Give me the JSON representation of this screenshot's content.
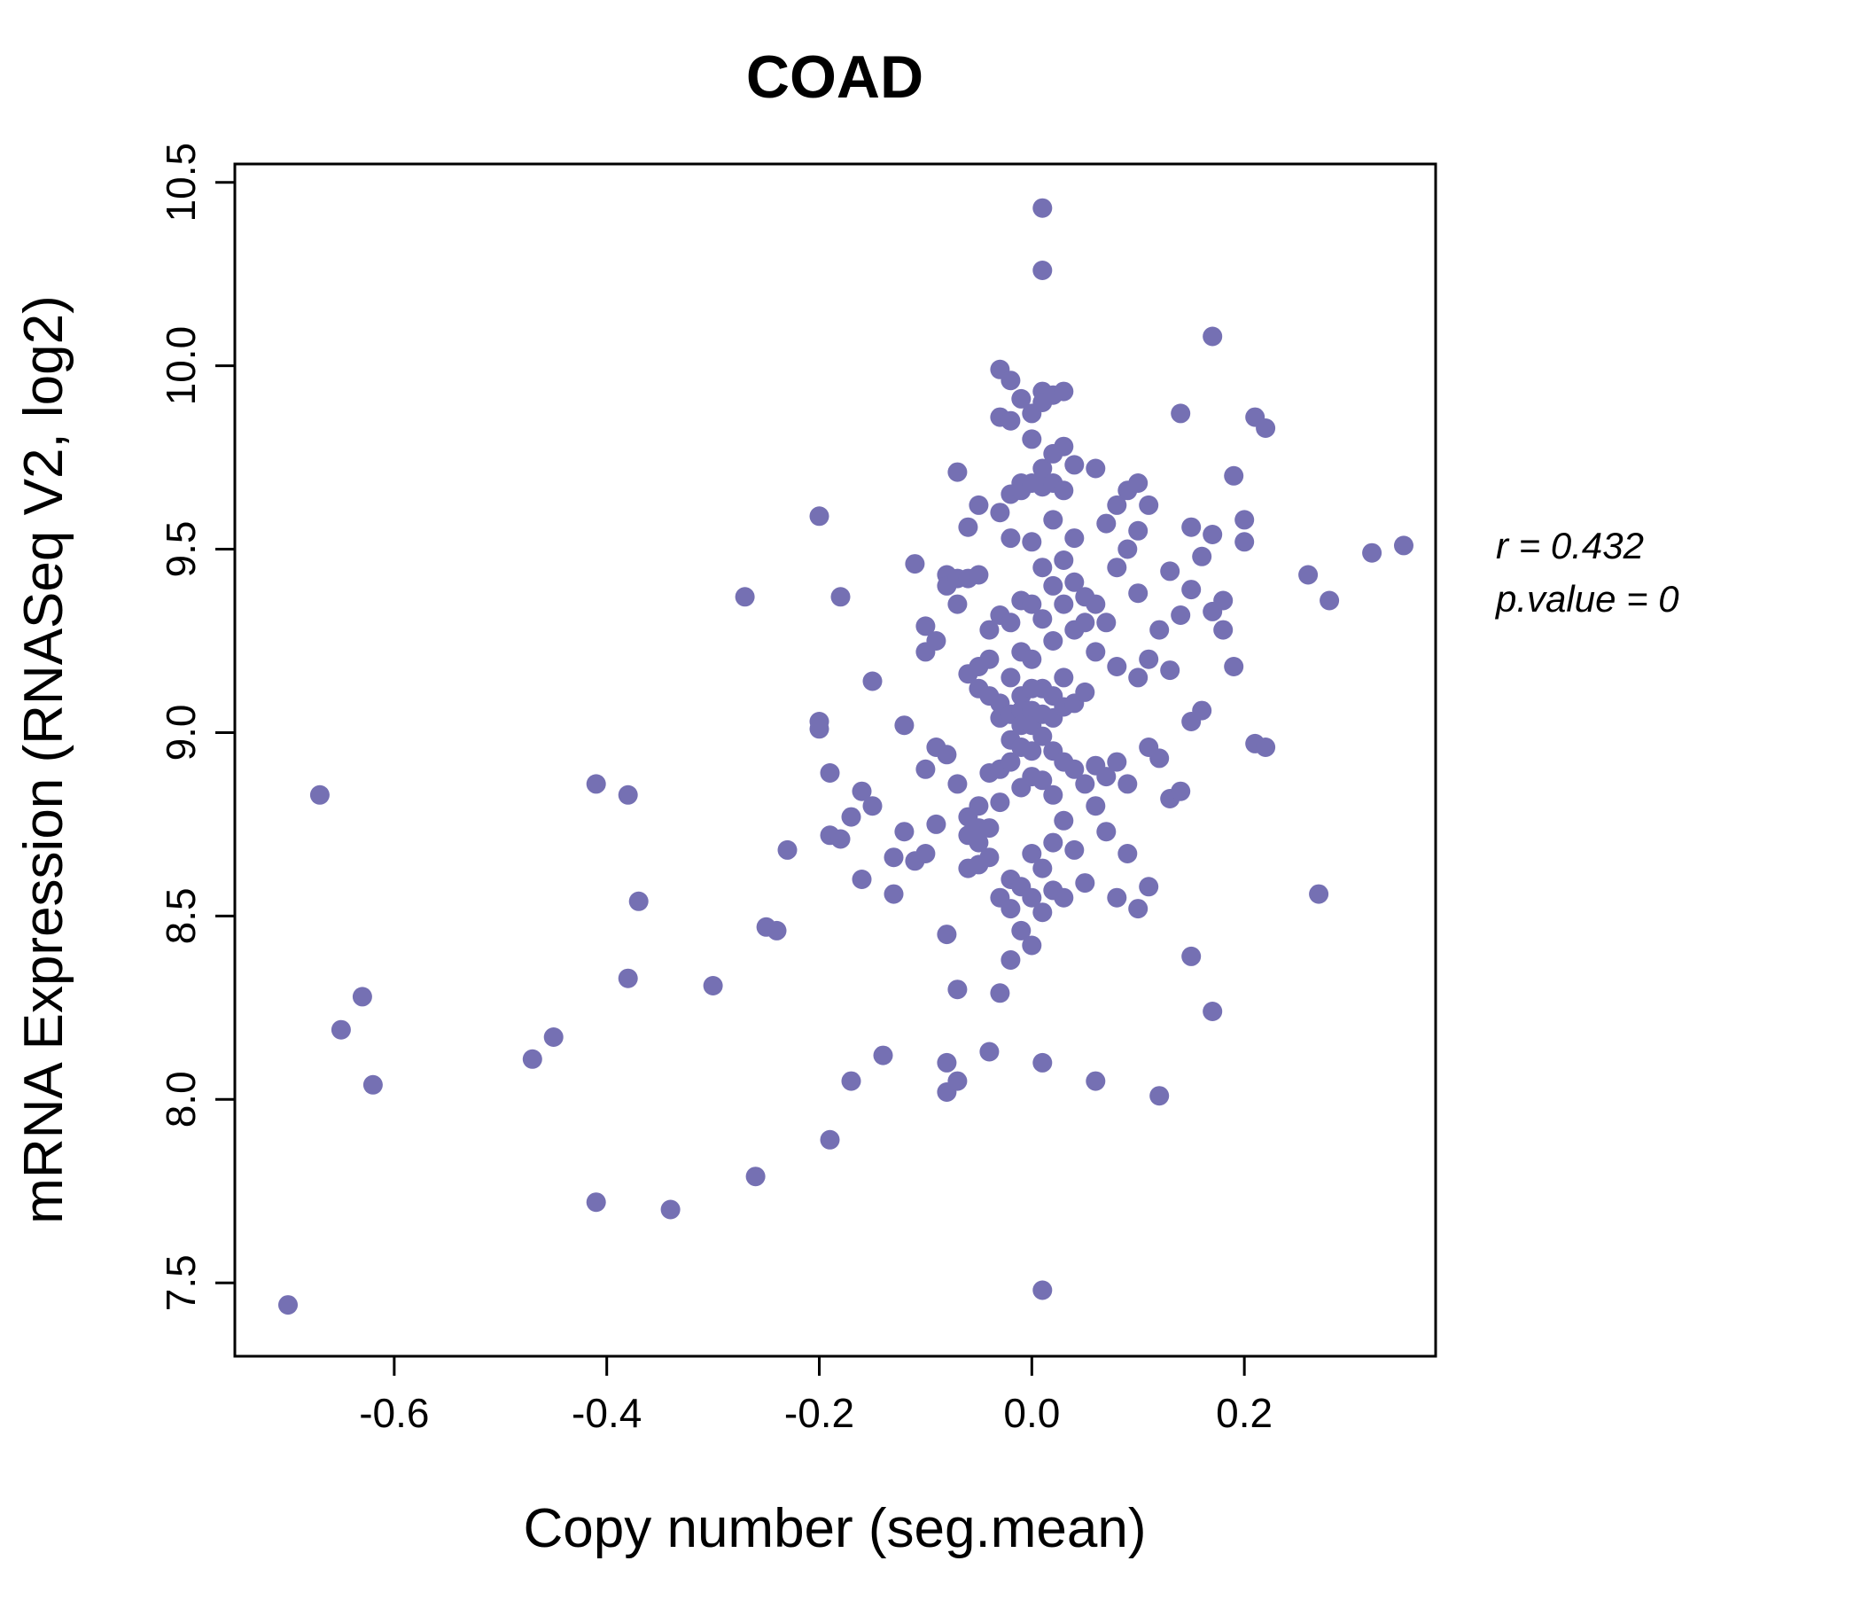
{
  "chart_data": {
    "type": "scatter",
    "title": "COAD",
    "xlabel": "Copy number (seg.mean)",
    "ylabel": "mRNA Expression (RNASeq V2, log2)",
    "xlim": [
      -0.75,
      0.38
    ],
    "ylim": [
      7.3,
      10.55
    ],
    "x_ticks": [
      "-0.6",
      "-0.4",
      "-0.2",
      "0.0",
      "0.2"
    ],
    "y_ticks": [
      "7.5",
      "8.0",
      "8.5",
      "9.0",
      "9.5",
      "10.0",
      "10.5"
    ],
    "annotation_lines": [
      "r = 0.432",
      "p.value = 0"
    ],
    "point_color": "#7570b3",
    "title_color": "#7e7fbc",
    "legend": "none",
    "grid": false,
    "points": [
      [
        -0.7,
        7.44
      ],
      [
        -0.67,
        8.83
      ],
      [
        -0.65,
        8.19
      ],
      [
        -0.63,
        8.28
      ],
      [
        -0.62,
        8.04
      ],
      [
        -0.47,
        8.11
      ],
      [
        -0.45,
        8.17
      ],
      [
        -0.41,
        7.72
      ],
      [
        -0.41,
        8.86
      ],
      [
        -0.38,
        8.83
      ],
      [
        -0.38,
        8.33
      ],
      [
        -0.37,
        8.54
      ],
      [
        -0.34,
        7.7
      ],
      [
        -0.3,
        8.31
      ],
      [
        -0.27,
        9.37
      ],
      [
        -0.26,
        7.79
      ],
      [
        -0.25,
        8.47
      ],
      [
        -0.24,
        8.46
      ],
      [
        -0.23,
        8.68
      ],
      [
        -0.2,
        9.59
      ],
      [
        -0.2,
        9.03
      ],
      [
        -0.2,
        9.01
      ],
      [
        -0.19,
        8.89
      ],
      [
        -0.19,
        8.72
      ],
      [
        -0.19,
        7.89
      ],
      [
        -0.18,
        9.37
      ],
      [
        -0.18,
        8.71
      ],
      [
        -0.17,
        8.05
      ],
      [
        -0.17,
        8.77
      ],
      [
        -0.16,
        8.84
      ],
      [
        -0.16,
        8.6
      ],
      [
        -0.15,
        9.14
      ],
      [
        -0.15,
        8.8
      ],
      [
        -0.14,
        8.12
      ],
      [
        -0.13,
        8.66
      ],
      [
        -0.13,
        8.56
      ],
      [
        -0.12,
        9.02
      ],
      [
        -0.12,
        8.73
      ],
      [
        -0.11,
        9.46
      ],
      [
        -0.11,
        8.65
      ],
      [
        -0.1,
        9.29
      ],
      [
        -0.1,
        9.22
      ],
      [
        -0.1,
        8.9
      ],
      [
        -0.1,
        8.67
      ],
      [
        -0.09,
        9.25
      ],
      [
        -0.09,
        8.96
      ],
      [
        -0.09,
        8.75
      ],
      [
        -0.08,
        9.43
      ],
      [
        -0.08,
        9.4
      ],
      [
        -0.08,
        8.94
      ],
      [
        -0.08,
        8.45
      ],
      [
        -0.08,
        8.1
      ],
      [
        -0.08,
        8.02
      ],
      [
        -0.07,
        9.71
      ],
      [
        -0.07,
        9.42
      ],
      [
        -0.07,
        9.35
      ],
      [
        -0.07,
        8.86
      ],
      [
        -0.07,
        8.3
      ],
      [
        -0.07,
        8.05
      ],
      [
        -0.06,
        9.56
      ],
      [
        -0.06,
        9.42
      ],
      [
        -0.06,
        9.16
      ],
      [
        -0.06,
        8.77
      ],
      [
        -0.06,
        8.72
      ],
      [
        -0.06,
        8.63
      ],
      [
        -0.05,
        9.62
      ],
      [
        -0.05,
        9.43
      ],
      [
        -0.05,
        9.18
      ],
      [
        -0.05,
        9.12
      ],
      [
        -0.05,
        8.8
      ],
      [
        -0.05,
        8.74
      ],
      [
        -0.05,
        8.7
      ],
      [
        -0.05,
        8.64
      ],
      [
        -0.04,
        9.28
      ],
      [
        -0.04,
        9.2
      ],
      [
        -0.04,
        9.1
      ],
      [
        -0.04,
        8.89
      ],
      [
        -0.04,
        8.74
      ],
      [
        -0.04,
        8.66
      ],
      [
        -0.04,
        8.13
      ],
      [
        -0.03,
        9.99
      ],
      [
        -0.03,
        9.86
      ],
      [
        -0.03,
        9.6
      ],
      [
        -0.03,
        9.32
      ],
      [
        -0.03,
        9.08
      ],
      [
        -0.03,
        9.04
      ],
      [
        -0.03,
        8.9
      ],
      [
        -0.03,
        8.81
      ],
      [
        -0.03,
        8.55
      ],
      [
        -0.03,
        8.29
      ],
      [
        -0.02,
        9.96
      ],
      [
        -0.02,
        9.85
      ],
      [
        -0.02,
        9.65
      ],
      [
        -0.02,
        9.53
      ],
      [
        -0.02,
        9.3
      ],
      [
        -0.02,
        9.15
      ],
      [
        -0.02,
        9.05
      ],
      [
        -0.02,
        8.98
      ],
      [
        -0.02,
        8.92
      ],
      [
        -0.02,
        8.6
      ],
      [
        -0.02,
        8.52
      ],
      [
        -0.02,
        8.38
      ],
      [
        -0.01,
        9.91
      ],
      [
        -0.01,
        9.68
      ],
      [
        -0.01,
        9.66
      ],
      [
        -0.01,
        9.36
      ],
      [
        -0.01,
        9.22
      ],
      [
        -0.01,
        9.1
      ],
      [
        -0.01,
        9.06
      ],
      [
        -0.01,
        9.02
      ],
      [
        -0.01,
        8.96
      ],
      [
        -0.01,
        8.85
      ],
      [
        -0.01,
        8.58
      ],
      [
        -0.01,
        8.46
      ],
      [
        0.0,
        9.87
      ],
      [
        0.0,
        9.8
      ],
      [
        0.0,
        9.68
      ],
      [
        0.0,
        9.52
      ],
      [
        0.0,
        9.35
      ],
      [
        0.0,
        9.2
      ],
      [
        0.0,
        9.12
      ],
      [
        0.0,
        9.06
      ],
      [
        0.0,
        9.02
      ],
      [
        0.0,
        8.95
      ],
      [
        0.0,
        8.88
      ],
      [
        0.0,
        8.67
      ],
      [
        0.0,
        8.55
      ],
      [
        0.0,
        8.42
      ],
      [
        0.01,
        10.43
      ],
      [
        0.01,
        10.26
      ],
      [
        0.01,
        9.93
      ],
      [
        0.01,
        9.9
      ],
      [
        0.01,
        9.72
      ],
      [
        0.01,
        9.67
      ],
      [
        0.01,
        9.45
      ],
      [
        0.01,
        9.31
      ],
      [
        0.01,
        9.12
      ],
      [
        0.01,
        9.05
      ],
      [
        0.01,
        8.99
      ],
      [
        0.01,
        8.87
      ],
      [
        0.01,
        8.63
      ],
      [
        0.01,
        8.51
      ],
      [
        0.01,
        8.1
      ],
      [
        0.01,
        7.48
      ],
      [
        0.02,
        9.92
      ],
      [
        0.02,
        9.76
      ],
      [
        0.02,
        9.68
      ],
      [
        0.02,
        9.58
      ],
      [
        0.02,
        9.4
      ],
      [
        0.02,
        9.25
      ],
      [
        0.02,
        9.1
      ],
      [
        0.02,
        9.04
      ],
      [
        0.02,
        8.95
      ],
      [
        0.02,
        8.83
      ],
      [
        0.02,
        8.7
      ],
      [
        0.02,
        8.57
      ],
      [
        0.03,
        9.93
      ],
      [
        0.03,
        9.78
      ],
      [
        0.03,
        9.66
      ],
      [
        0.03,
        9.47
      ],
      [
        0.03,
        9.35
      ],
      [
        0.03,
        9.15
      ],
      [
        0.03,
        9.07
      ],
      [
        0.03,
        8.92
      ],
      [
        0.03,
        8.76
      ],
      [
        0.03,
        8.55
      ],
      [
        0.04,
        9.73
      ],
      [
        0.04,
        9.53
      ],
      [
        0.04,
        9.41
      ],
      [
        0.04,
        9.28
      ],
      [
        0.04,
        9.08
      ],
      [
        0.04,
        8.9
      ],
      [
        0.04,
        8.68
      ],
      [
        0.05,
        9.37
      ],
      [
        0.05,
        9.3
      ],
      [
        0.05,
        9.11
      ],
      [
        0.05,
        8.86
      ],
      [
        0.05,
        8.59
      ],
      [
        0.06,
        9.72
      ],
      [
        0.06,
        9.35
      ],
      [
        0.06,
        9.22
      ],
      [
        0.06,
        8.91
      ],
      [
        0.06,
        8.8
      ],
      [
        0.06,
        8.05
      ],
      [
        0.07,
        9.57
      ],
      [
        0.07,
        9.3
      ],
      [
        0.07,
        8.88
      ],
      [
        0.07,
        8.73
      ],
      [
        0.08,
        9.62
      ],
      [
        0.08,
        9.45
      ],
      [
        0.08,
        9.18
      ],
      [
        0.08,
        8.92
      ],
      [
        0.08,
        8.55
      ],
      [
        0.09,
        9.66
      ],
      [
        0.09,
        9.5
      ],
      [
        0.09,
        8.86
      ],
      [
        0.09,
        8.67
      ],
      [
        0.1,
        9.68
      ],
      [
        0.1,
        9.55
      ],
      [
        0.1,
        9.38
      ],
      [
        0.1,
        9.15
      ],
      [
        0.1,
        8.52
      ],
      [
        0.11,
        9.62
      ],
      [
        0.11,
        9.2
      ],
      [
        0.11,
        8.96
      ],
      [
        0.11,
        8.58
      ],
      [
        0.12,
        9.28
      ],
      [
        0.12,
        8.93
      ],
      [
        0.12,
        8.01
      ],
      [
        0.13,
        9.44
      ],
      [
        0.13,
        9.17
      ],
      [
        0.13,
        8.82
      ],
      [
        0.14,
        9.87
      ],
      [
        0.14,
        9.32
      ],
      [
        0.14,
        8.84
      ],
      [
        0.15,
        9.56
      ],
      [
        0.15,
        9.39
      ],
      [
        0.15,
        9.03
      ],
      [
        0.15,
        8.39
      ],
      [
        0.16,
        9.48
      ],
      [
        0.16,
        9.06
      ],
      [
        0.17,
        10.08
      ],
      [
        0.17,
        9.54
      ],
      [
        0.17,
        9.33
      ],
      [
        0.17,
        8.24
      ],
      [
        0.18,
        9.36
      ],
      [
        0.18,
        9.28
      ],
      [
        0.19,
        9.7
      ],
      [
        0.19,
        9.18
      ],
      [
        0.2,
        9.58
      ],
      [
        0.2,
        9.52
      ],
      [
        0.21,
        9.86
      ],
      [
        0.21,
        8.97
      ],
      [
        0.22,
        9.83
      ],
      [
        0.22,
        8.96
      ],
      [
        0.26,
        9.43
      ],
      [
        0.27,
        8.56
      ],
      [
        0.28,
        9.36
      ],
      [
        0.32,
        9.49
      ],
      [
        0.35,
        9.51
      ]
    ]
  }
}
